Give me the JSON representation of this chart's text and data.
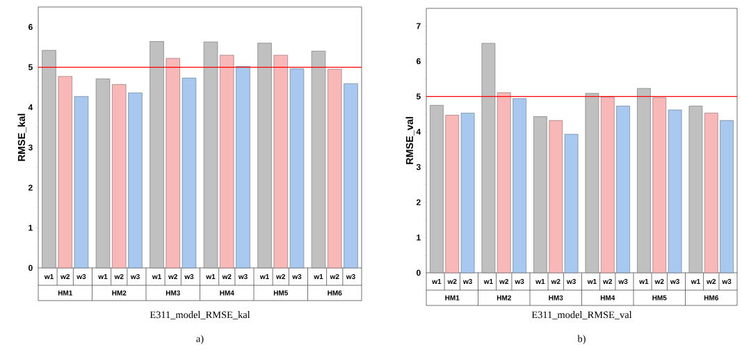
{
  "chart_data": [
    {
      "type": "bar",
      "ylabel": "RMSE_kal",
      "categories": [
        "HM1",
        "HM2",
        "HM3",
        "HM4",
        "HM5",
        "HM6"
      ],
      "series": [
        {
          "name": "w1",
          "color": "#c0c0c0",
          "values": [
            5.42,
            4.71,
            5.64,
            5.63,
            5.6,
            5.4
          ]
        },
        {
          "name": "w2",
          "color": "#f8b8b8",
          "values": [
            4.77,
            4.57,
            5.22,
            5.3,
            5.3,
            4.95
          ]
        },
        {
          "name": "w3",
          "color": "#a8c8f0",
          "values": [
            4.27,
            4.36,
            4.73,
            5.02,
            4.96,
            4.59
          ]
        }
      ],
      "ylim": [
        0,
        6.5
      ],
      "yticks": [
        0,
        1,
        2,
        3,
        4,
        5,
        6
      ],
      "ref_lines": [
        {
          "axis": "y",
          "value": 5,
          "color": "#ff0000"
        }
      ],
      "annotations": [
        "E311_model_RMSE_kal",
        "a)"
      ]
    },
    {
      "type": "bar",
      "ylabel": "RMSE_val",
      "categories": [
        "HM1",
        "HM2",
        "HM3",
        "HM4",
        "HM5",
        "HM6"
      ],
      "series": [
        {
          "name": "w1",
          "color": "#c0c0c0",
          "values": [
            4.75,
            6.51,
            4.43,
            5.09,
            5.23,
            4.73
          ]
        },
        {
          "name": "w2",
          "color": "#f8b8b8",
          "values": [
            4.47,
            5.11,
            4.32,
            4.98,
            4.97,
            4.53
          ]
        },
        {
          "name": "w3",
          "color": "#a8c8f0",
          "values": [
            4.53,
            4.94,
            3.93,
            4.73,
            4.62,
            4.32
          ]
        }
      ],
      "ylim": [
        0,
        7.5
      ],
      "yticks": [
        0,
        1,
        2,
        3,
        4,
        5,
        6,
        7
      ],
      "ref_lines": [
        {
          "axis": "y",
          "value": 5,
          "color": "#ff0000"
        }
      ],
      "annotations": [
        "E311_model_RMSE_val",
        "b)"
      ]
    }
  ]
}
